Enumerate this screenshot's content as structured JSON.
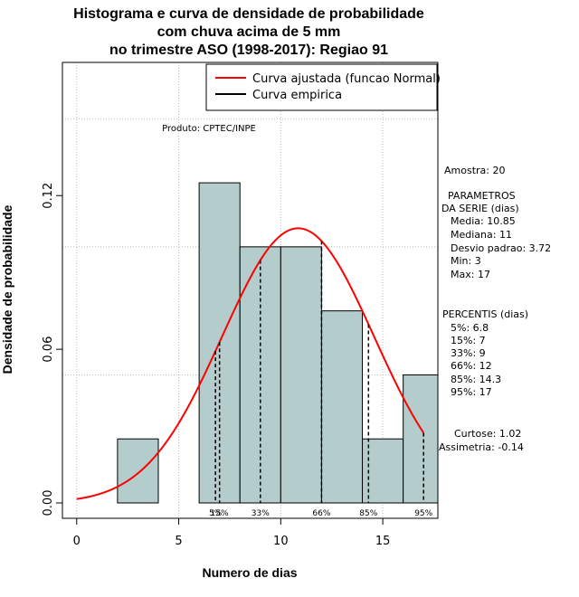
{
  "chart_data": {
    "type": "histogram",
    "title": [
      "Histograma e curva de densidade de probabilidade",
      "com chuva acima de 5 mm",
      "no trimestre ASO (1998-2017): Regiao 91"
    ],
    "xlabel": "Numero de dias",
    "ylabel": "Densidade de probabilidade",
    "xlim": [
      -0.7,
      17.7
    ],
    "ylim": [
      -0.006,
      0.172
    ],
    "x_ticks": [
      0,
      5,
      10,
      15
    ],
    "y_ticks": [
      0.0,
      0.06,
      0.12
    ],
    "y_tick_labels": [
      "0.00",
      "0.06",
      "0.12"
    ],
    "grid": true,
    "bins": [
      {
        "start": 2,
        "end": 4,
        "density": 0.025
      },
      {
        "start": 4,
        "end": 6,
        "density": 0.0
      },
      {
        "start": 6,
        "end": 8,
        "density": 0.125
      },
      {
        "start": 8,
        "end": 10,
        "density": 0.1
      },
      {
        "start": 10,
        "end": 12,
        "density": 0.1
      },
      {
        "start": 12,
        "end": 14,
        "density": 0.075
      },
      {
        "start": 14,
        "end": 16,
        "density": 0.025
      },
      {
        "start": 16,
        "end": 18,
        "density": 0.05
      }
    ],
    "normal_curve": {
      "mean": 10.85,
      "sd": 3.72,
      "from": 0,
      "to": 17
    },
    "percentiles": [
      {
        "label": "5%",
        "value": 6.8
      },
      {
        "label": "15%",
        "value": 7
      },
      {
        "label": "33%",
        "value": 9
      },
      {
        "label": "66%",
        "value": 12
      },
      {
        "label": "85%",
        "value": 14.3
      },
      {
        "label": "95%",
        "value": 17
      }
    ],
    "legend": {
      "position": "top-right",
      "entries": [
        {
          "label": "Curva ajustada (funcao Normal)",
          "color": "#ff0000"
        },
        {
          "label": "Curva empirica",
          "color": "#000000"
        }
      ]
    },
    "product_label": "Produto: CPTEC/INPE",
    "colors": {
      "bar_fill": "#b4cccc",
      "bar_stroke": "#000000",
      "curve": "#ff0000",
      "grid": "#bbbbbb"
    }
  },
  "side_panel": {
    "sample": "Amostra: 20",
    "params_header": [
      "PARAMETROS",
      "DA SERIE (dias)"
    ],
    "params": [
      "Media: 10.85",
      "Mediana: 11",
      "Desvio padrao: 3.72",
      "Min: 3",
      "Max: 17"
    ],
    "percentis_header": "PERCENTIS (dias)",
    "percentis": [
      "5%: 6.8",
      "15%: 7",
      "33%: 9",
      "66%: 12",
      "85%: 14.3",
      "95%: 17"
    ],
    "stats": [
      "Curtose: 1.02",
      "Assimetria: -0.14"
    ]
  }
}
